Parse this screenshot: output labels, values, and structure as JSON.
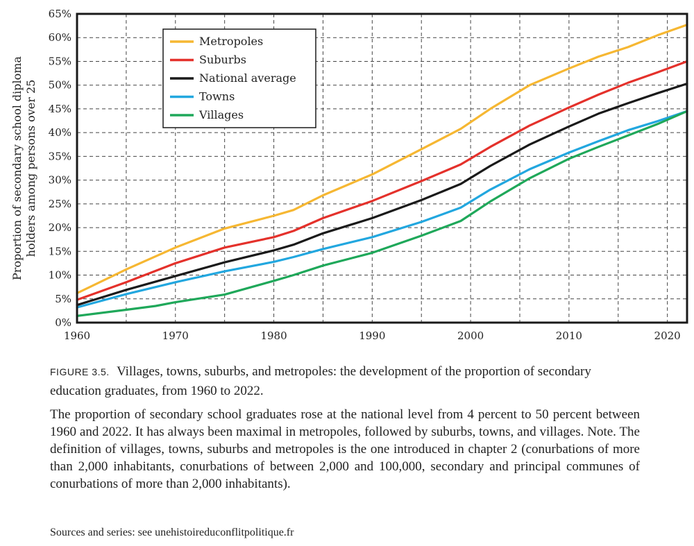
{
  "chart_data": {
    "type": "line",
    "ylabel": "Proportion of secondary school diploma holders among persons over 25",
    "ylabel_lines": [
      "Proportion of secondary school diploma",
      "holders among persons over 25"
    ],
    "xlim": [
      1960,
      2022
    ],
    "ylim": [
      0,
      65
    ],
    "x_ticks": [
      1960,
      1970,
      1980,
      1990,
      2000,
      2010,
      2020
    ],
    "x_tick_labels": [
      "1960",
      "1970",
      "1980",
      "1990",
      "2000",
      "2010",
      "2020"
    ],
    "y_ticks": [
      0,
      5,
      10,
      15,
      20,
      25,
      30,
      35,
      40,
      45,
      50,
      55,
      60,
      65
    ],
    "y_tick_labels": [
      "0%",
      "5%",
      "10%",
      "15%",
      "20%",
      "25%",
      "30%",
      "35%",
      "40%",
      "45%",
      "50%",
      "55%",
      "60%",
      "65%"
    ],
    "grid": true,
    "legend_position": "top-left",
    "series": [
      {
        "name": "Metropoles",
        "color": "#f6b732",
        "points": [
          [
            1960,
            6.2
          ],
          [
            1965,
            11.2
          ],
          [
            1970,
            15.8
          ],
          [
            1975,
            19.8
          ],
          [
            1980,
            22.5
          ],
          [
            1982,
            23.7
          ],
          [
            1985,
            26.8
          ],
          [
            1990,
            31.2
          ],
          [
            1995,
            36.5
          ],
          [
            1999,
            40.8
          ],
          [
            2002,
            45.0
          ],
          [
            2006,
            50.0
          ],
          [
            2010,
            53.5
          ],
          [
            2013,
            56.0
          ],
          [
            2016,
            58.0
          ],
          [
            2019,
            60.5
          ],
          [
            2022,
            62.7
          ]
        ]
      },
      {
        "name": "Suburbs",
        "color": "#e4312b",
        "points": [
          [
            1960,
            4.8
          ],
          [
            1965,
            8.5
          ],
          [
            1970,
            12.5
          ],
          [
            1975,
            15.8
          ],
          [
            1980,
            18.0
          ],
          [
            1982,
            19.3
          ],
          [
            1985,
            22.0
          ],
          [
            1990,
            25.6
          ],
          [
            1995,
            29.8
          ],
          [
            1999,
            33.3
          ],
          [
            2002,
            37.0
          ],
          [
            2006,
            41.5
          ],
          [
            2010,
            45.3
          ],
          [
            2013,
            48.0
          ],
          [
            2016,
            50.5
          ],
          [
            2019,
            52.7
          ],
          [
            2022,
            55.0
          ]
        ]
      },
      {
        "name": "National average",
        "color": "#1a1a1a",
        "points": [
          [
            1960,
            3.7
          ],
          [
            1965,
            6.9
          ],
          [
            1970,
            9.8
          ],
          [
            1975,
            12.7
          ],
          [
            1980,
            15.2
          ],
          [
            1982,
            16.4
          ],
          [
            1985,
            18.8
          ],
          [
            1990,
            22.0
          ],
          [
            1995,
            25.8
          ],
          [
            1999,
            29.2
          ],
          [
            2002,
            33.0
          ],
          [
            2006,
            37.5
          ],
          [
            2010,
            41.3
          ],
          [
            2013,
            44.0
          ],
          [
            2016,
            46.2
          ],
          [
            2019,
            48.3
          ],
          [
            2022,
            50.3
          ]
        ]
      },
      {
        "name": "Towns",
        "color": "#22a7df",
        "points": [
          [
            1960,
            3.2
          ],
          [
            1965,
            6.0
          ],
          [
            1970,
            8.5
          ],
          [
            1975,
            10.8
          ],
          [
            1980,
            12.8
          ],
          [
            1982,
            13.8
          ],
          [
            1985,
            15.5
          ],
          [
            1990,
            18.0
          ],
          [
            1995,
            21.2
          ],
          [
            1999,
            24.2
          ],
          [
            2002,
            28.0
          ],
          [
            2006,
            32.3
          ],
          [
            2010,
            35.8
          ],
          [
            2013,
            38.2
          ],
          [
            2016,
            40.5
          ],
          [
            2019,
            42.4
          ],
          [
            2022,
            44.5
          ]
        ]
      },
      {
        "name": "Villages",
        "color": "#1fa85a",
        "points": [
          [
            1960,
            1.4
          ],
          [
            1965,
            2.7
          ],
          [
            1968,
            3.5
          ],
          [
            1970,
            4.3
          ],
          [
            1975,
            5.9
          ],
          [
            1980,
            8.8
          ],
          [
            1982,
            10.0
          ],
          [
            1985,
            12.0
          ],
          [
            1990,
            14.7
          ],
          [
            1995,
            18.3
          ],
          [
            1999,
            21.4
          ],
          [
            2002,
            25.5
          ],
          [
            2006,
            30.4
          ],
          [
            2010,
            34.5
          ],
          [
            2013,
            37.0
          ],
          [
            2016,
            39.4
          ],
          [
            2019,
            41.8
          ],
          [
            2022,
            44.5
          ]
        ]
      }
    ]
  },
  "caption": {
    "figure_number": "FIGURE 3.5.",
    "title": "Villages, towns, suburbs, and metropoles: the development of the proportion of secondary education graduates, from 1960 to 2022.",
    "note": "The proportion of secondary school graduates rose at the national level from 4 percent to 50 percent between 1960 and 2022. It has always been maximal in metropoles, followed by suburbs, towns, and villages. Note. The definition of villages, towns, suburbs and metropoles is the one introduced in chapter 2 (conurbations of more than 2,000 inhabitants, conurbations of between 2,000 and 100,000, secondary and principal communes of conurbations of more than 2,000 inhabitants).",
    "sources": "Sources and series: see unehistoireduconflitpolitique.fr"
  }
}
